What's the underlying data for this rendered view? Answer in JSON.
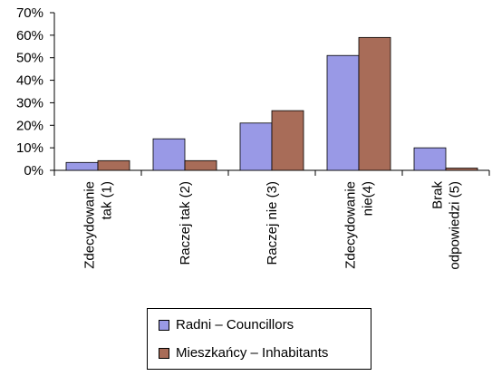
{
  "chart_data": {
    "type": "bar",
    "categories": [
      [
        "Zdecydowanie",
        "tak (1)"
      ],
      [
        "Raczej tak (2)"
      ],
      [
        "Raczej nie (3)"
      ],
      [
        "Zdecydowanie",
        "nie(4)"
      ],
      [
        "Brak",
        "odpowiedzi (5)"
      ]
    ],
    "series": [
      {
        "name": "Radni – Councillors",
        "color": "#9999e6",
        "values": [
          3.5,
          14,
          21,
          51,
          10
        ]
      },
      {
        "name": "Mieszkańcy – Inhabitants",
        "color": "#a86c58",
        "values": [
          4.3,
          4.3,
          26.5,
          59,
          1
        ]
      }
    ],
    "ylim": [
      0,
      70
    ],
    "yticks": [
      "0%",
      "10%",
      "20%",
      "30%",
      "40%",
      "50%",
      "60%",
      "70%"
    ],
    "grid": false,
    "legend_placement": "bottom"
  }
}
